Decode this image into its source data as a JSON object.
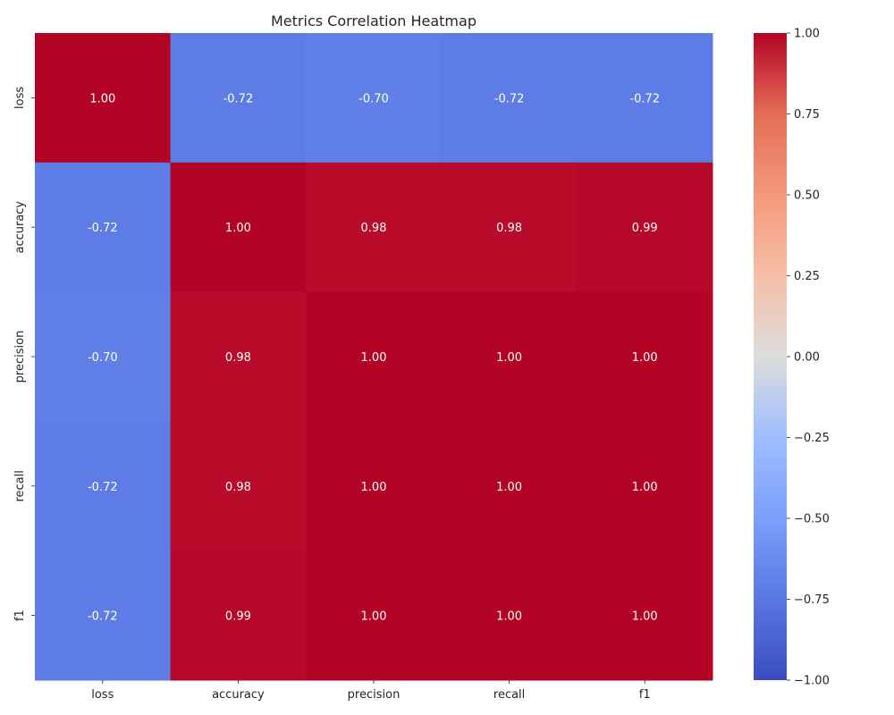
{
  "chart_data": {
    "type": "heatmap",
    "title": "Metrics Correlation Heatmap",
    "xlabel": "",
    "ylabel": "",
    "x_categories": [
      "loss",
      "accuracy",
      "precision",
      "recall",
      "f1"
    ],
    "y_categories": [
      "loss",
      "accuracy",
      "precision",
      "recall",
      "f1"
    ],
    "values": [
      [
        1.0,
        -0.72,
        -0.7,
        -0.72,
        -0.72
      ],
      [
        -0.72,
        1.0,
        0.98,
        0.98,
        0.99
      ],
      [
        -0.7,
        0.98,
        1.0,
        1.0,
        1.0
      ],
      [
        -0.72,
        0.98,
        1.0,
        1.0,
        1.0
      ],
      [
        -0.72,
        0.99,
        1.0,
        1.0,
        1.0
      ]
    ],
    "value_format": "0.00",
    "colormap": "coolwarm",
    "vmin": -1.0,
    "vmax": 1.0,
    "colorbar_ticks": [
      1.0,
      0.75,
      0.5,
      0.25,
      0.0,
      -0.25,
      -0.5,
      -0.75,
      -1.0
    ],
    "colorbar_tick_labels": [
      "1.00",
      "0.75",
      "0.50",
      "0.25",
      "0.00",
      "−0.25",
      "−0.50",
      "−0.75",
      "−1.00"
    ],
    "grid": false,
    "legend": "colorbar-right"
  }
}
